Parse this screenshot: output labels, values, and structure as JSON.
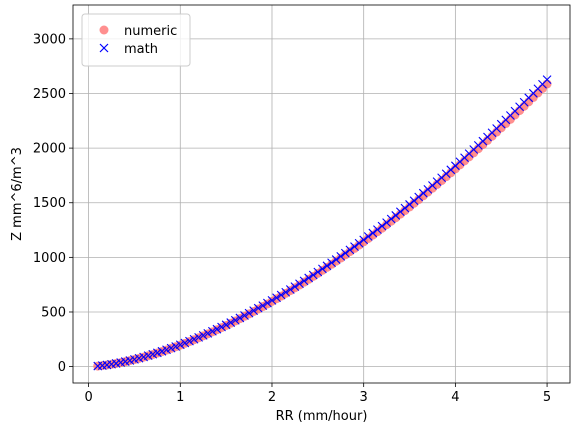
{
  "chart_data": {
    "type": "scatter",
    "title": "",
    "xlabel": "RR (mm/hour)",
    "ylabel": "Z mm^6/m^3",
    "xlim": [
      -0.17,
      5.25
    ],
    "ylim": [
      -150,
      3310
    ],
    "xticks": [
      0,
      1,
      2,
      3,
      4,
      5
    ],
    "yticks": [
      0,
      500,
      1000,
      1500,
      2000,
      2500,
      3000
    ],
    "grid": true,
    "legend_position": "top-left",
    "model": {
      "a": 200,
      "b": 1.6
    },
    "x": [
      0.1,
      0.15,
      0.2,
      0.25,
      0.3,
      0.35,
      0.4,
      0.45,
      0.5,
      0.55,
      0.6,
      0.65,
      0.7,
      0.75,
      0.8,
      0.85,
      0.9,
      0.95,
      1.0,
      1.05,
      1.1,
      1.15,
      1.2,
      1.25,
      1.3,
      1.35,
      1.4,
      1.45,
      1.5,
      1.55,
      1.6,
      1.65,
      1.7,
      1.75,
      1.8,
      1.85,
      1.9,
      1.95,
      2.0,
      2.05,
      2.1,
      2.15,
      2.2,
      2.25,
      2.3,
      2.35,
      2.4,
      2.45,
      2.5,
      2.55,
      2.6,
      2.65,
      2.7,
      2.75,
      2.8,
      2.85,
      2.9,
      2.95,
      3.0,
      3.05,
      3.1,
      3.15,
      3.2,
      3.25,
      3.3,
      3.35,
      3.4,
      3.45,
      3.5,
      3.55,
      3.6,
      3.65,
      3.7,
      3.75,
      3.8,
      3.85,
      3.9,
      3.95,
      4.0,
      4.05,
      4.1,
      4.15,
      4.2,
      4.25,
      4.3,
      4.35,
      4.4,
      4.45,
      4.5,
      4.55,
      4.6,
      4.65,
      4.7,
      4.75,
      4.8,
      4.85,
      4.9,
      4.95,
      5.0
    ],
    "series": [
      {
        "name": "numeric",
        "marker": "circle",
        "color": "#ff6a6a",
        "opacity": 0.75,
        "scale": 0.985
      },
      {
        "name": "math",
        "marker": "x",
        "color": "#0000ff",
        "opacity": 1.0,
        "scale": 1.0
      }
    ]
  },
  "colors": {
    "grid": "#b0b0b0",
    "axes": "#000000",
    "background": "#ffffff"
  }
}
